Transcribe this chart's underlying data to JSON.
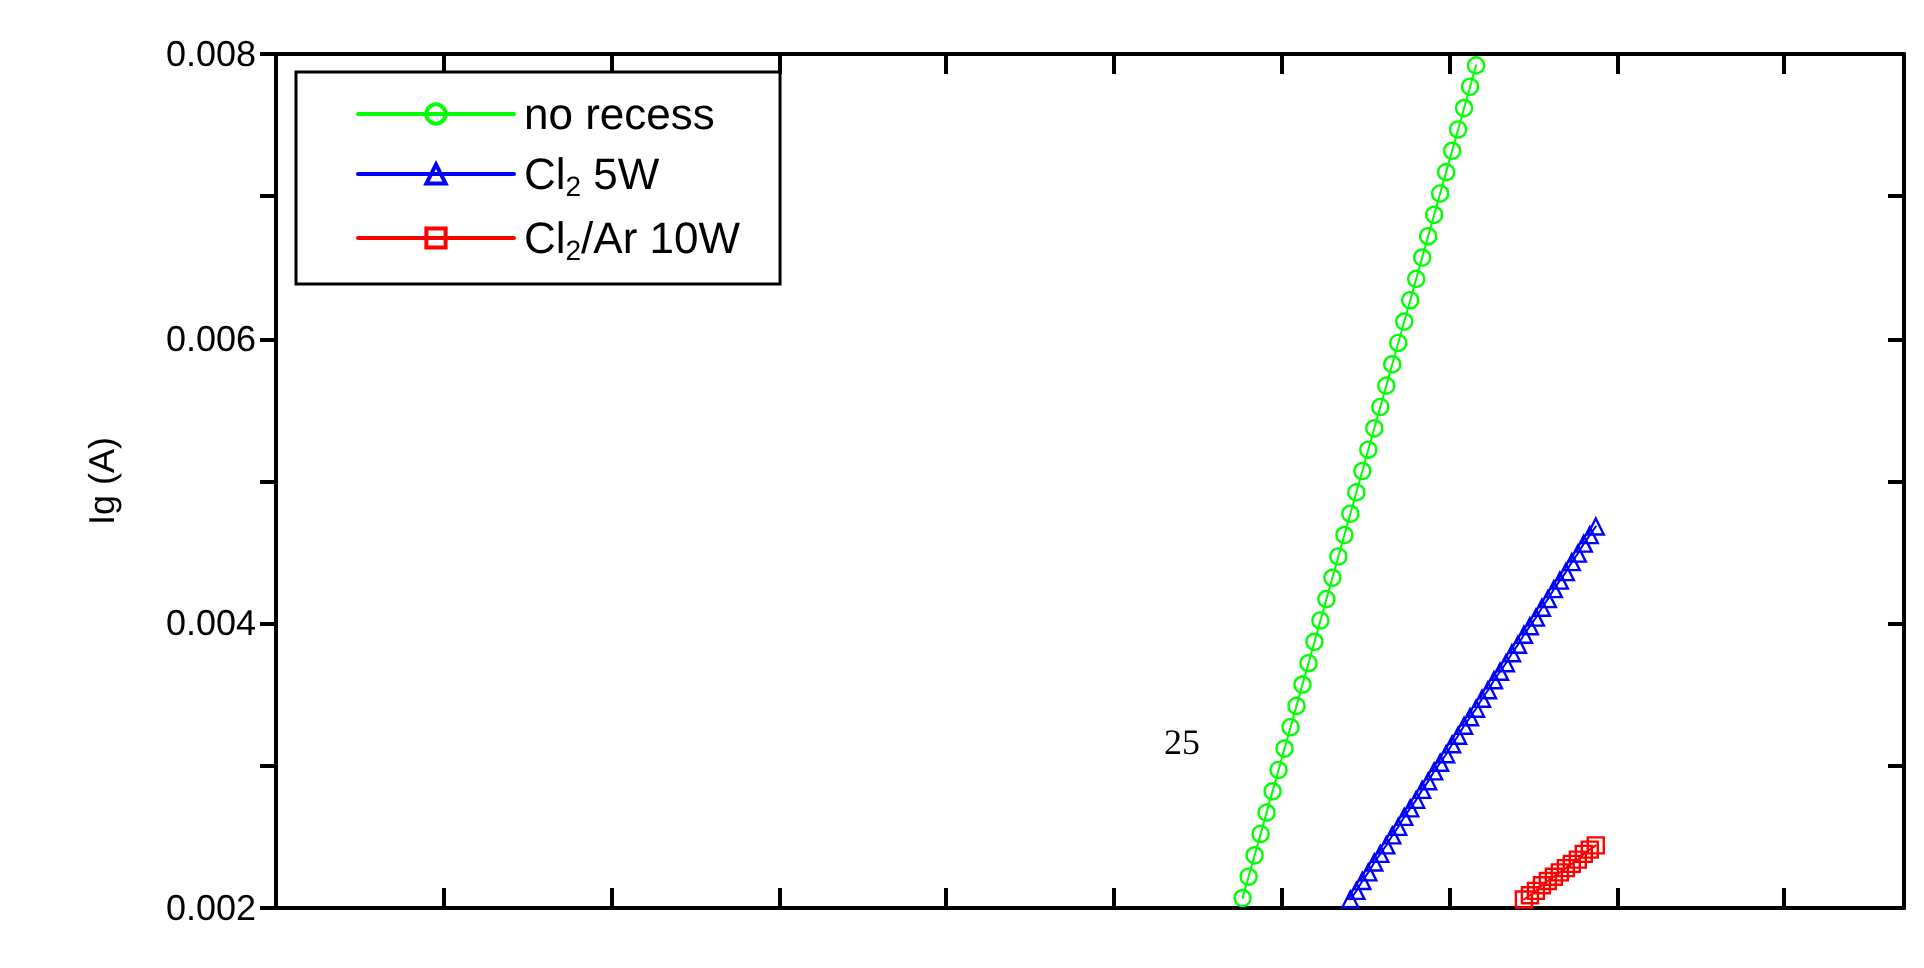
{
  "chart_data": {
    "type": "line",
    "ylabel": "Ig (A)",
    "annotations": [
      "25"
    ],
    "categories": [
      null,
      null,
      null,
      null,
      null,
      null,
      null,
      null,
      null,
      null,
      null,
      null,
      null,
      null,
      null,
      null,
      null,
      null,
      null,
      null,
      null,
      null,
      null,
      null,
      null,
      null,
      null,
      null,
      null,
      null,
      null,
      null,
      null,
      null,
      null,
      null,
      null,
      null,
      null,
      null,
      null,
      null,
      null,
      null,
      null,
      null,
      null,
      null,
      null,
      null,
      null,
      null,
      null,
      null,
      null,
      null,
      null,
      null,
      null,
      null,
      null,
      null,
      null,
      null,
      null,
      null,
      null,
      null,
      null,
      null,
      null,
      null,
      null,
      null,
      null,
      null,
      null,
      null,
      null,
      null,
      null,
      null,
      null,
      null,
      null,
      null,
      null,
      null,
      null,
      null,
      null,
      null,
      null,
      null,
      null,
      null,
      null,
      null,
      null,
      null,
      null,
      null,
      null,
      null,
      null,
      null,
      null,
      null,
      null,
      null,
      null,
      null,
      null,
      null,
      null,
      null,
      null,
      null,
      null,
      null,
      null,
      null,
      null,
      null,
      null,
      null,
      null,
      null,
      null,
      null,
      null,
      null,
      null,
      null,
      null,
      null,
      null,
      null,
      null,
      null,
      null,
      null,
      null,
      null,
      null,
      null,
      null,
      null,
      null,
      null,
      null,
      null,
      null,
      null,
      null,
      null,
      null,
      null,
      null,
      null,
      null,
      null,
      null,
      null,
      null,
      null,
      null,
      null,
      null,
      null,
      null,
      null,
      null,
      null,
      null,
      null,
      null,
      null,
      null,
      null,
      null,
      null,
      null,
      null,
      null,
      null,
      null,
      null,
      null,
      null,
      null,
      null,
      null,
      null,
      null,
      null,
      null,
      null,
      null,
      null,
      null,
      null,
      null,
      null,
      null,
      null,
      null,
      null,
      null,
      null,
      null,
      null,
      null,
      null,
      null,
      null,
      null,
      null,
      null,
      null,
      null,
      null,
      null,
      null,
      null,
      null,
      null,
      null,
      null,
      null,
      null,
      null,
      null,
      null,
      null,
      null,
      null,
      null,
      null,
      null,
      null,
      null,
      null,
      null,
      null,
      null,
      null,
      null,
      null,
      null,
      null,
      null,
      null,
      null,
      null,
      null,
      null,
      null,
      null,
      null,
      null,
      null,
      null,
      null,
      null,
      null,
      null,
      null,
      null,
      null,
      null,
      null
    ],
    "series": [
      {
        "name": "no recess",
        "color": "#00ff00",
        "marker": "circle",
        "values": [
          null,
          null,
          null,
          null,
          null,
          null,
          null,
          null,
          null,
          null,
          null,
          null,
          null,
          null,
          null,
          null,
          null,
          null,
          null,
          null,
          null,
          null,
          null,
          null,
          null,
          null,
          null,
          null,
          null,
          null,
          null,
          null,
          null,
          null,
          null,
          null,
          null,
          null,
          null,
          null,
          null,
          null,
          null,
          null,
          null,
          null,
          null,
          null,
          null,
          null,
          null,
          null,
          null,
          null,
          null,
          null,
          null,
          null,
          null,
          null,
          null,
          null,
          null,
          null,
          null,
          null,
          null,
          null,
          null,
          null,
          null,
          null,
          null,
          null,
          null,
          null,
          null,
          null,
          null,
          null,
          null,
          null,
          null,
          null,
          null,
          null,
          null,
          null,
          null,
          null,
          null,
          null,
          null,
          null,
          null,
          null,
          null,
          null,
          null,
          null,
          null,
          null,
          null,
          null,
          null,
          null,
          null,
          null,
          null,
          null,
          null,
          null,
          null,
          null,
          null,
          null,
          null,
          null,
          null,
          null,
          null,
          null,
          null,
          null,
          null,
          null,
          null,
          null,
          null,
          null,
          null,
          null,
          null,
          null,
          null,
          null,
          null,
          null,
          null,
          null,
          null,
          null,
          null,
          null,
          null,
          null,
          null,
          null,
          null,
          null,
          null,
          null,
          null,
          null,
          null,
          null,
          null,
          null,
          null,
          null,
          null,
          0.00207,
          0.00222,
          0.00237,
          0.00252,
          0.00267,
          0.00282,
          0.00297,
          0.00312,
          0.00327,
          0.00342,
          0.00357,
          0.00372,
          0.00387,
          0.00402,
          0.00417,
          0.00432,
          0.00447,
          0.00462,
          0.00477,
          0.00492,
          0.00507,
          0.00522,
          0.00537,
          0.00552,
          0.00567,
          0.00582,
          0.00597,
          0.00612,
          0.00627,
          0.00642,
          0.00657,
          0.00672,
          0.00687,
          0.00702,
          0.00717,
          0.00732,
          0.00747,
          0.00762,
          0.00777,
          0.00792,
          null,
          null,
          null,
          null,
          null,
          null,
          null,
          null,
          null,
          null,
          null,
          null,
          null,
          null,
          null,
          null,
          null,
          null,
          null,
          null,
          null,
          null,
          null,
          null,
          null,
          null,
          null,
          null,
          null,
          null,
          null,
          null,
          null,
          null,
          null,
          null,
          null,
          null,
          null,
          null,
          null,
          null,
          null,
          null,
          null,
          null,
          null,
          null,
          null,
          null,
          null,
          null,
          null,
          null,
          null,
          null,
          null,
          null,
          null,
          null,
          null,
          null,
          null,
          null,
          null,
          null,
          null,
          null,
          null,
          null,
          null
        ]
      },
      {
        "name": "Cl$_{2}$ 5W",
        "color": "#0000ff",
        "marker": "triangle",
        "values": [
          null,
          null,
          null,
          null,
          null,
          null,
          null,
          null,
          null,
          null,
          null,
          null,
          null,
          null,
          null,
          null,
          null,
          null,
          null,
          null,
          null,
          null,
          null,
          null,
          null,
          null,
          null,
          null,
          null,
          null,
          null,
          null,
          null,
          null,
          null,
          null,
          null,
          null,
          null,
          null,
          null,
          null,
          null,
          null,
          null,
          null,
          null,
          null,
          null,
          null,
          null,
          null,
          null,
          null,
          null,
          null,
          null,
          null,
          null,
          null,
          null,
          null,
          null,
          null,
          null,
          null,
          null,
          null,
          null,
          null,
          null,
          null,
          null,
          null,
          null,
          null,
          null,
          null,
          null,
          null,
          null,
          null,
          null,
          null,
          null,
          null,
          null,
          null,
          null,
          null,
          null,
          null,
          null,
          null,
          null,
          null,
          null,
          null,
          null,
          null,
          null,
          null,
          null,
          null,
          null,
          null,
          null,
          null,
          null,
          null,
          null,
          null,
          null,
          null,
          null,
          null,
          null,
          null,
          null,
          null,
          null,
          null,
          null,
          null,
          null,
          null,
          null,
          null,
          null,
          null,
          null,
          null,
          null,
          null,
          null,
          null,
          null,
          null,
          null,
          null,
          null,
          null,
          null,
          null,
          null,
          null,
          null,
          null,
          null,
          null,
          null,
          null,
          null,
          null,
          null,
          null,
          null,
          null,
          null,
          null,
          null,
          null,
          null,
          null,
          null,
          null,
          null,
          null,
          null,
          null,
          null,
          null,
          null,
          null,
          null,
          null,
          null,
          null,
          null,
          0.00206,
          0.00212,
          0.00219,
          0.00225,
          0.00232,
          0.00238,
          0.00244,
          0.00251,
          0.00257,
          0.00264,
          0.0027,
          0.00276,
          0.00283,
          0.00289,
          0.00296,
          0.00302,
          0.00308,
          0.00315,
          0.00321,
          0.00328,
          0.00334,
          0.0034,
          0.00347,
          0.00353,
          0.0036,
          0.00366,
          0.00372,
          0.00379,
          0.00385,
          0.00392,
          0.00398,
          0.00404,
          0.00411,
          0.00417,
          0.00424,
          0.0043,
          0.00436,
          0.00443,
          0.00449,
          0.00456,
          0.00462,
          0.00468,
          null,
          null,
          null,
          null,
          null,
          null,
          null,
          null,
          null,
          null,
          null,
          null,
          null,
          null,
          null,
          null,
          null,
          null,
          null,
          null,
          null,
          null,
          null,
          null,
          null,
          null,
          null,
          null,
          null,
          null,
          null,
          null,
          null,
          null,
          null,
          null,
          null,
          null,
          null,
          null,
          null,
          null,
          null,
          null,
          null,
          null,
          null,
          null,
          null,
          null,
          null
        ]
      },
      {
        "name": "Cl$_{2}$/Ar 10W",
        "color": "#ff0000",
        "marker": "square",
        "values": [
          null,
          null,
          null,
          null,
          null,
          null,
          null,
          null,
          null,
          null,
          null,
          null,
          null,
          null,
          null,
          null,
          null,
          null,
          null,
          null,
          null,
          null,
          null,
          null,
          null,
          null,
          null,
          null,
          null,
          null,
          null,
          null,
          null,
          null,
          null,
          null,
          null,
          null,
          null,
          null,
          null,
          null,
          null,
          null,
          null,
          null,
          null,
          null,
          null,
          null,
          null,
          null,
          null,
          null,
          null,
          null,
          null,
          null,
          null,
          null,
          null,
          null,
          null,
          null,
          null,
          null,
          null,
          null,
          null,
          null,
          null,
          null,
          null,
          null,
          null,
          null,
          null,
          null,
          null,
          null,
          null,
          null,
          null,
          null,
          null,
          null,
          null,
          null,
          null,
          null,
          null,
          null,
          null,
          null,
          null,
          null,
          null,
          null,
          null,
          null,
          null,
          null,
          null,
          null,
          null,
          null,
          null,
          null,
          null,
          null,
          null,
          null,
          null,
          null,
          null,
          null,
          null,
          null,
          null,
          null,
          null,
          null,
          null,
          null,
          null,
          null,
          null,
          null,
          null,
          null,
          null,
          null,
          null,
          null,
          null,
          null,
          null,
          null,
          null,
          null,
          null,
          null,
          null,
          null,
          null,
          null,
          null,
          null,
          null,
          null,
          null,
          null,
          null,
          null,
          null,
          null,
          null,
          null,
          null,
          null,
          null,
          null,
          null,
          null,
          null,
          null,
          null,
          null,
          null,
          null,
          null,
          null,
          null,
          null,
          null,
          null,
          null,
          null,
          null,
          null,
          null,
          null,
          null,
          null,
          null,
          null,
          null,
          null,
          null,
          null,
          null,
          null,
          null,
          null,
          null,
          null,
          null,
          null,
          null,
          null,
          null,
          null,
          null,
          null,
          null,
          null,
          null,
          null,
          0.00206,
          0.00209,
          0.00212,
          0.00216,
          0.00219,
          0.00222,
          0.00225,
          0.00228,
          0.00231,
          0.00234,
          0.00238,
          0.00241,
          0.00244,
          null,
          null,
          null,
          null,
          null,
          null,
          null,
          null,
          null,
          null,
          null,
          null,
          null,
          null,
          null,
          null,
          null,
          null,
          null,
          null,
          null,
          null,
          null,
          null,
          null,
          null,
          null,
          null,
          null,
          null,
          null,
          null,
          null,
          null,
          null,
          null,
          null,
          null,
          null,
          null,
          null,
          null,
          null,
          null,
          null,
          null,
          null,
          null,
          null,
          null,
          null
        ]
      }
    ],
    "ylim": [
      0.002,
      0.008
    ],
    "yticks": [
      0.002,
      {
        "value": 0.003,
        "label": null
      },
      0.004,
      {
        "value": 0.005,
        "label": null
      },
      0.006,
      {
        "value": 0.007,
        "label": null
      },
      0.008
    ],
    "tick_labels": "y",
    "grid": false,
    "legend": "top left",
    "line_style": "solid"
  }
}
